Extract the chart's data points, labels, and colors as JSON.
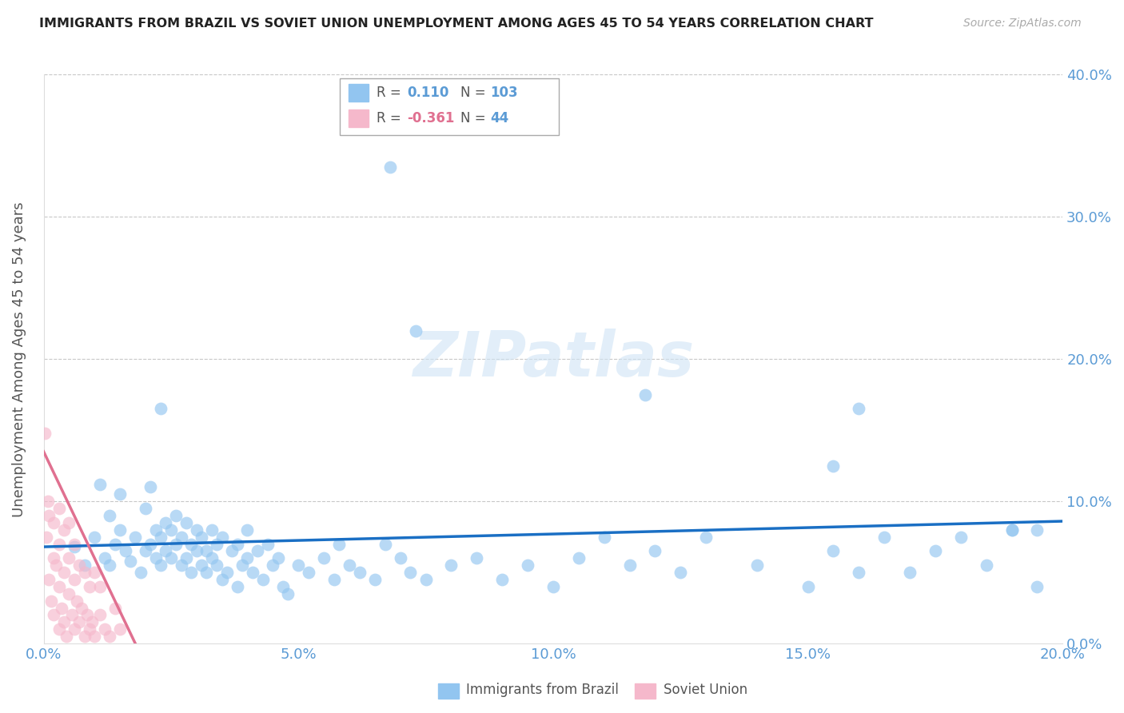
{
  "title": "IMMIGRANTS FROM BRAZIL VS SOVIET UNION UNEMPLOYMENT AMONG AGES 45 TO 54 YEARS CORRELATION CHART",
  "source": "Source: ZipAtlas.com",
  "ylabel": "Unemployment Among Ages 45 to 54 years",
  "xlim": [
    0.0,
    0.2
  ],
  "ylim": [
    0.0,
    0.4
  ],
  "xticks": [
    0.0,
    0.05,
    0.1,
    0.15,
    0.2
  ],
  "yticks": [
    0.0,
    0.1,
    0.2,
    0.3,
    0.4
  ],
  "xtick_labels": [
    "0.0%",
    "5.0%",
    "10.0%",
    "15.0%",
    "20.0%"
  ],
  "ytick_labels": [
    "0.0%",
    "10.0%",
    "20.0%",
    "30.0%",
    "40.0%"
  ],
  "brazil_color": "#92c5f0",
  "soviet_color": "#f5b8cb",
  "brazil_R": 0.11,
  "brazil_N": 103,
  "soviet_R": -0.361,
  "soviet_N": 44,
  "trend_blue": "#1a6fc4",
  "trend_pink": "#e07090",
  "legend_label_brazil": "Immigrants from Brazil",
  "legend_label_soviet": "Soviet Union",
  "watermark": "ZIPatlas",
  "axis_color": "#5b9bd5",
  "brazil_scatter_x": [
    0.006,
    0.008,
    0.01,
    0.011,
    0.012,
    0.013,
    0.013,
    0.014,
    0.015,
    0.015,
    0.016,
    0.017,
    0.018,
    0.019,
    0.02,
    0.02,
    0.021,
    0.021,
    0.022,
    0.022,
    0.023,
    0.023,
    0.024,
    0.024,
    0.025,
    0.025,
    0.026,
    0.026,
    0.027,
    0.027,
    0.028,
    0.028,
    0.029,
    0.029,
    0.03,
    0.03,
    0.031,
    0.031,
    0.032,
    0.032,
    0.033,
    0.033,
    0.034,
    0.034,
    0.035,
    0.035,
    0.036,
    0.037,
    0.038,
    0.038,
    0.039,
    0.04,
    0.04,
    0.041,
    0.042,
    0.043,
    0.044,
    0.045,
    0.046,
    0.047,
    0.048,
    0.05,
    0.052,
    0.055,
    0.057,
    0.058,
    0.06,
    0.062,
    0.065,
    0.067,
    0.07,
    0.072,
    0.075,
    0.08,
    0.085,
    0.09,
    0.095,
    0.1,
    0.105,
    0.11,
    0.115,
    0.12,
    0.125,
    0.13,
    0.14,
    0.15,
    0.155,
    0.16,
    0.165,
    0.17,
    0.175,
    0.18,
    0.185,
    0.19,
    0.195,
    0.068,
    0.073,
    0.023,
    0.118,
    0.195,
    0.155,
    0.16,
    0.19
  ],
  "brazil_scatter_y": [
    0.068,
    0.055,
    0.075,
    0.112,
    0.06,
    0.055,
    0.09,
    0.07,
    0.08,
    0.105,
    0.065,
    0.058,
    0.075,
    0.05,
    0.065,
    0.095,
    0.07,
    0.11,
    0.06,
    0.08,
    0.075,
    0.055,
    0.085,
    0.065,
    0.06,
    0.08,
    0.07,
    0.09,
    0.055,
    0.075,
    0.06,
    0.085,
    0.05,
    0.07,
    0.065,
    0.08,
    0.055,
    0.075,
    0.05,
    0.065,
    0.06,
    0.08,
    0.055,
    0.07,
    0.045,
    0.075,
    0.05,
    0.065,
    0.04,
    0.07,
    0.055,
    0.06,
    0.08,
    0.05,
    0.065,
    0.045,
    0.07,
    0.055,
    0.06,
    0.04,
    0.035,
    0.055,
    0.05,
    0.06,
    0.045,
    0.07,
    0.055,
    0.05,
    0.045,
    0.07,
    0.06,
    0.05,
    0.045,
    0.055,
    0.06,
    0.045,
    0.055,
    0.04,
    0.06,
    0.075,
    0.055,
    0.065,
    0.05,
    0.075,
    0.055,
    0.04,
    0.065,
    0.05,
    0.075,
    0.05,
    0.065,
    0.075,
    0.055,
    0.08,
    0.04,
    0.335,
    0.22,
    0.165,
    0.175,
    0.08,
    0.125,
    0.165,
    0.08
  ],
  "soviet_scatter_x": [
    0.0003,
    0.0005,
    0.0008,
    0.001,
    0.001,
    0.0015,
    0.002,
    0.002,
    0.002,
    0.0025,
    0.003,
    0.003,
    0.003,
    0.003,
    0.0035,
    0.004,
    0.004,
    0.004,
    0.0045,
    0.005,
    0.005,
    0.005,
    0.0055,
    0.006,
    0.006,
    0.006,
    0.0065,
    0.007,
    0.007,
    0.0075,
    0.008,
    0.008,
    0.0085,
    0.009,
    0.009,
    0.0095,
    0.01,
    0.01,
    0.011,
    0.011,
    0.012,
    0.013,
    0.014,
    0.015
  ],
  "soviet_scatter_y": [
    0.148,
    0.075,
    0.1,
    0.045,
    0.09,
    0.03,
    0.06,
    0.085,
    0.02,
    0.055,
    0.01,
    0.04,
    0.07,
    0.095,
    0.025,
    0.05,
    0.015,
    0.08,
    0.005,
    0.035,
    0.06,
    0.085,
    0.02,
    0.045,
    0.07,
    0.01,
    0.03,
    0.055,
    0.015,
    0.025,
    0.05,
    0.005,
    0.02,
    0.04,
    0.01,
    0.015,
    0.05,
    0.005,
    0.02,
    0.04,
    0.01,
    0.005,
    0.025,
    0.01
  ],
  "brazil_trend_x0": 0.0,
  "brazil_trend_y0": 0.068,
  "brazil_trend_x1": 0.2,
  "brazil_trend_y1": 0.086,
  "soviet_trend_x0": 0.0,
  "soviet_trend_y0": 0.135,
  "soviet_trend_x1": 0.018,
  "soviet_trend_y1": 0.0
}
